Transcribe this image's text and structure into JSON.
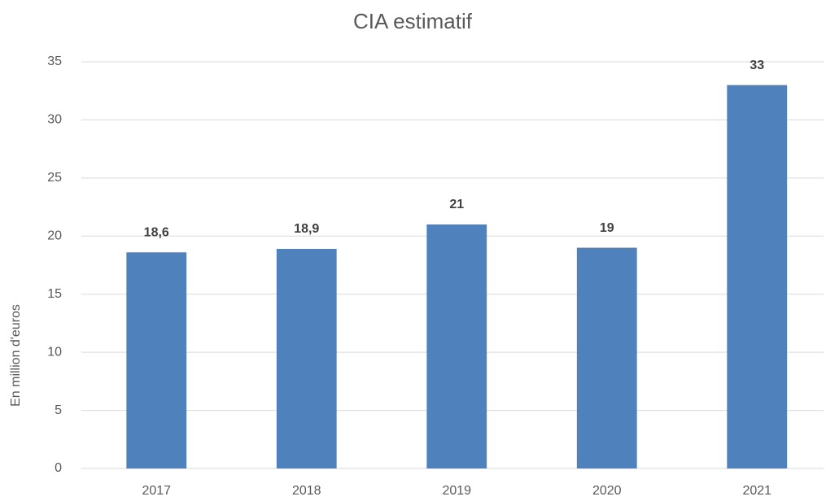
{
  "chart_data": {
    "type": "bar",
    "title": "CIA estimatif",
    "y_label": "En million d'euros",
    "categories": [
      "2017",
      "2018",
      "2019",
      "2020",
      "2021"
    ],
    "values": [
      18.6,
      18.9,
      21,
      19,
      33
    ],
    "value_labels": [
      "18,6",
      "18,9",
      "21",
      "19",
      "33"
    ],
    "color": "#4f81bd",
    "ylim": [
      0,
      35
    ],
    "yticks": [
      0,
      5,
      10,
      15,
      20,
      25,
      30,
      35
    ],
    "grid": true
  }
}
